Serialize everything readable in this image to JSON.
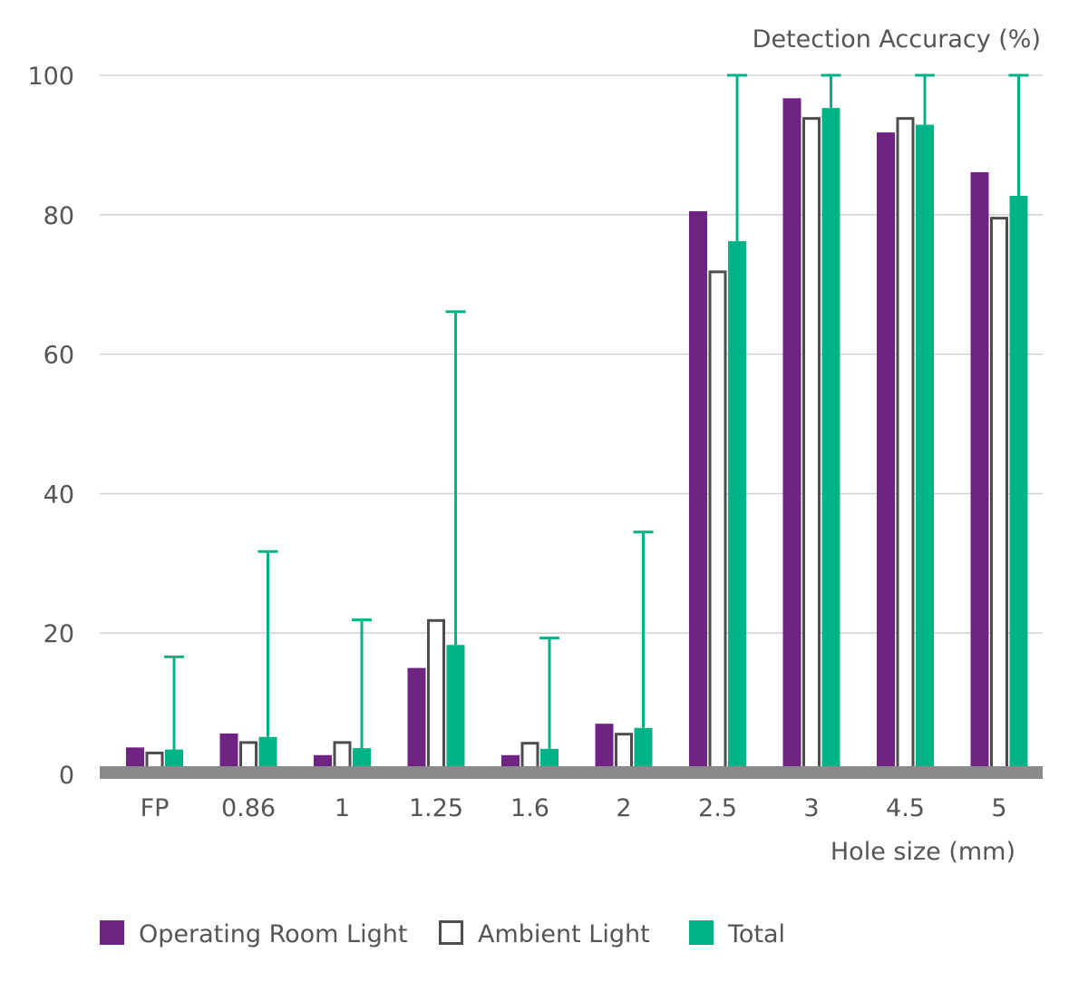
{
  "chart_data": {
    "type": "bar",
    "title": "",
    "ylabel": "Detection Accuracy (%)",
    "xlabel": "Hole size (mm)",
    "ylim": [
      0,
      100
    ],
    "yticks": [
      0,
      20,
      40,
      60,
      80,
      100
    ],
    "grid": true,
    "categories": [
      "FP",
      "0.86",
      "1",
      "1.25",
      "1.6",
      "2",
      "2.5",
      "3",
      "4.5",
      "5"
    ],
    "series": [
      {
        "name": "Operating Room Light",
        "color": "#6f2383",
        "style": "filled",
        "values": [
          3.6,
          5.6,
          2.5,
          15.0,
          2.5,
          7.0,
          80.5,
          96.7,
          91.8,
          86.1
        ]
      },
      {
        "name": "Ambient Light",
        "color": "#4d4d4d",
        "style": "outline",
        "values": [
          3.0,
          4.5,
          4.5,
          22.0,
          4.4,
          5.7,
          72.0,
          94.0,
          94.0,
          79.7
        ]
      },
      {
        "name": "Total",
        "color": "#00b386",
        "style": "filled",
        "values": [
          3.3,
          5.1,
          3.5,
          18.3,
          3.4,
          6.4,
          76.2,
          95.3,
          92.9,
          82.7
        ],
        "error_upper": [
          16.6,
          31.7,
          21.9,
          66.1,
          19.3,
          34.5,
          100,
          100,
          100,
          100
        ]
      }
    ],
    "baseline_color": "#8a8a8a",
    "grid_color": "#cccccc",
    "legend_position": "bottom-left"
  }
}
